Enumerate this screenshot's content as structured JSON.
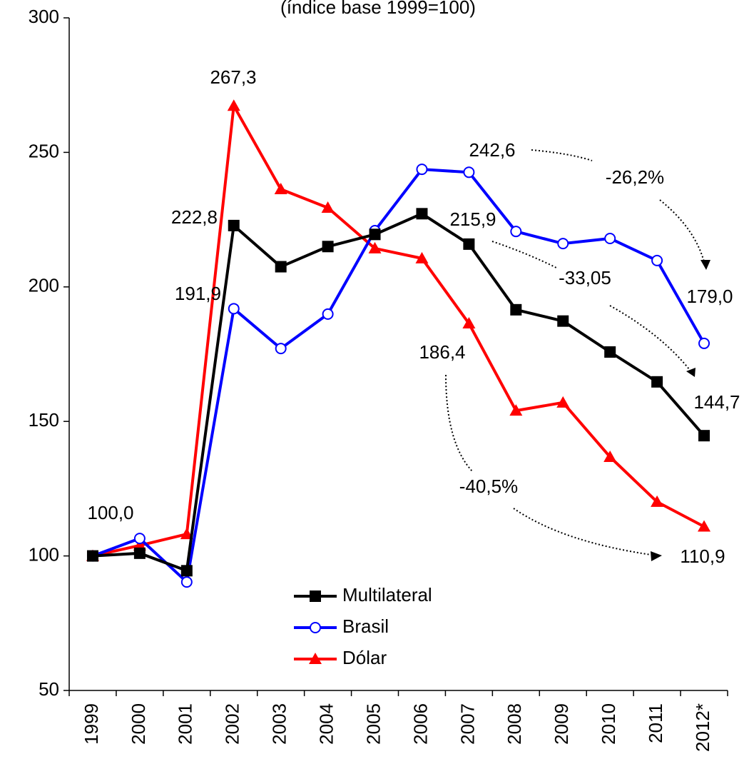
{
  "chart_data": {
    "type": "line",
    "subtitle": "(índice base 1999=100)",
    "categories": [
      "1999",
      "2000",
      "2001",
      "2002",
      "2003",
      "2004",
      "2005",
      "2006",
      "2007",
      "2008",
      "2009",
      "2010",
      "2011",
      "2012*"
    ],
    "series": [
      {
        "name": "Multilateral",
        "color": "#000000",
        "marker": "square",
        "values": [
          100,
          101,
          94.5,
          222.8,
          207.5,
          215,
          219.5,
          227.2,
          215.9,
          191.5,
          187.3,
          175.8,
          164.7,
          144.7
        ],
        "value_labels": [
          "100,0",
          null,
          null,
          "222,8",
          null,
          null,
          null,
          null,
          "215,9",
          null,
          null,
          null,
          null,
          "144,7"
        ]
      },
      {
        "name": "Brasil",
        "color": "#0000ff",
        "marker": "circle",
        "values": [
          100,
          106.5,
          90.3,
          191.9,
          177.1,
          189.9,
          220.9,
          243.7,
          242.6,
          220.6,
          216.1,
          218,
          209.8,
          179.0
        ],
        "value_labels": [
          null,
          null,
          null,
          "191,9",
          null,
          null,
          null,
          null,
          "242,6",
          null,
          null,
          null,
          null,
          "179,0"
        ]
      },
      {
        "name": "Dólar",
        "color": "#ff0000",
        "marker": "triangle",
        "values": [
          100,
          103.9,
          108.1,
          267.3,
          236.3,
          229.4,
          214.3,
          210.6,
          186.4,
          154.0,
          157.0,
          136.8,
          120.1,
          110.9
        ],
        "value_labels": [
          null,
          null,
          null,
          "267,3",
          null,
          null,
          null,
          null,
          "186,4",
          null,
          null,
          null,
          null,
          "110,9"
        ]
      }
    ],
    "annotations": [
      "-26,2%",
      "-33,05",
      "-40,5%"
    ],
    "ylim": [
      50,
      300
    ],
    "yticks": [
      50,
      100,
      150,
      200,
      250,
      300
    ],
    "grid": false,
    "legend": "lower center"
  }
}
